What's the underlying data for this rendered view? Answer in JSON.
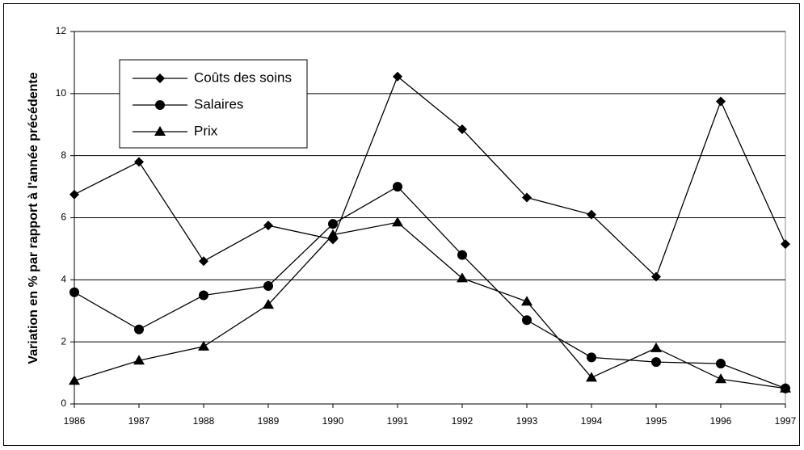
{
  "chart_data": {
    "type": "line",
    "y_label": "Variation en % par rapport à l'année précédente",
    "categories": [
      "1986",
      "1987",
      "1988",
      "1989",
      "1990",
      "1991",
      "1992",
      "1993",
      "1994",
      "1995",
      "1996",
      "1997"
    ],
    "series": [
      {
        "name": "Coûts des soins",
        "color": "#000000",
        "marker": "diamond",
        "values": [
          6.75,
          7.8,
          4.6,
          5.75,
          5.3,
          10.55,
          8.85,
          6.65,
          6.1,
          4.1,
          9.75,
          5.15
        ]
      },
      {
        "name": "Salaires",
        "color": "#000000",
        "marker": "circle",
        "values": [
          3.6,
          2.4,
          3.5,
          3.8,
          5.8,
          7.0,
          4.8,
          2.7,
          1.5,
          1.35,
          1.3,
          0.5
        ]
      },
      {
        "name": "Prix",
        "color": "#000000",
        "marker": "triangle",
        "values": [
          0.75,
          1.4,
          1.85,
          3.2,
          5.45,
          5.85,
          4.05,
          3.3,
          0.85,
          1.8,
          0.8,
          0.5
        ]
      }
    ],
    "ylim": [
      0,
      12
    ],
    "yticks": [
      0,
      2,
      4,
      6,
      8,
      10,
      12
    ],
    "grid": true,
    "legend": "upper left"
  }
}
